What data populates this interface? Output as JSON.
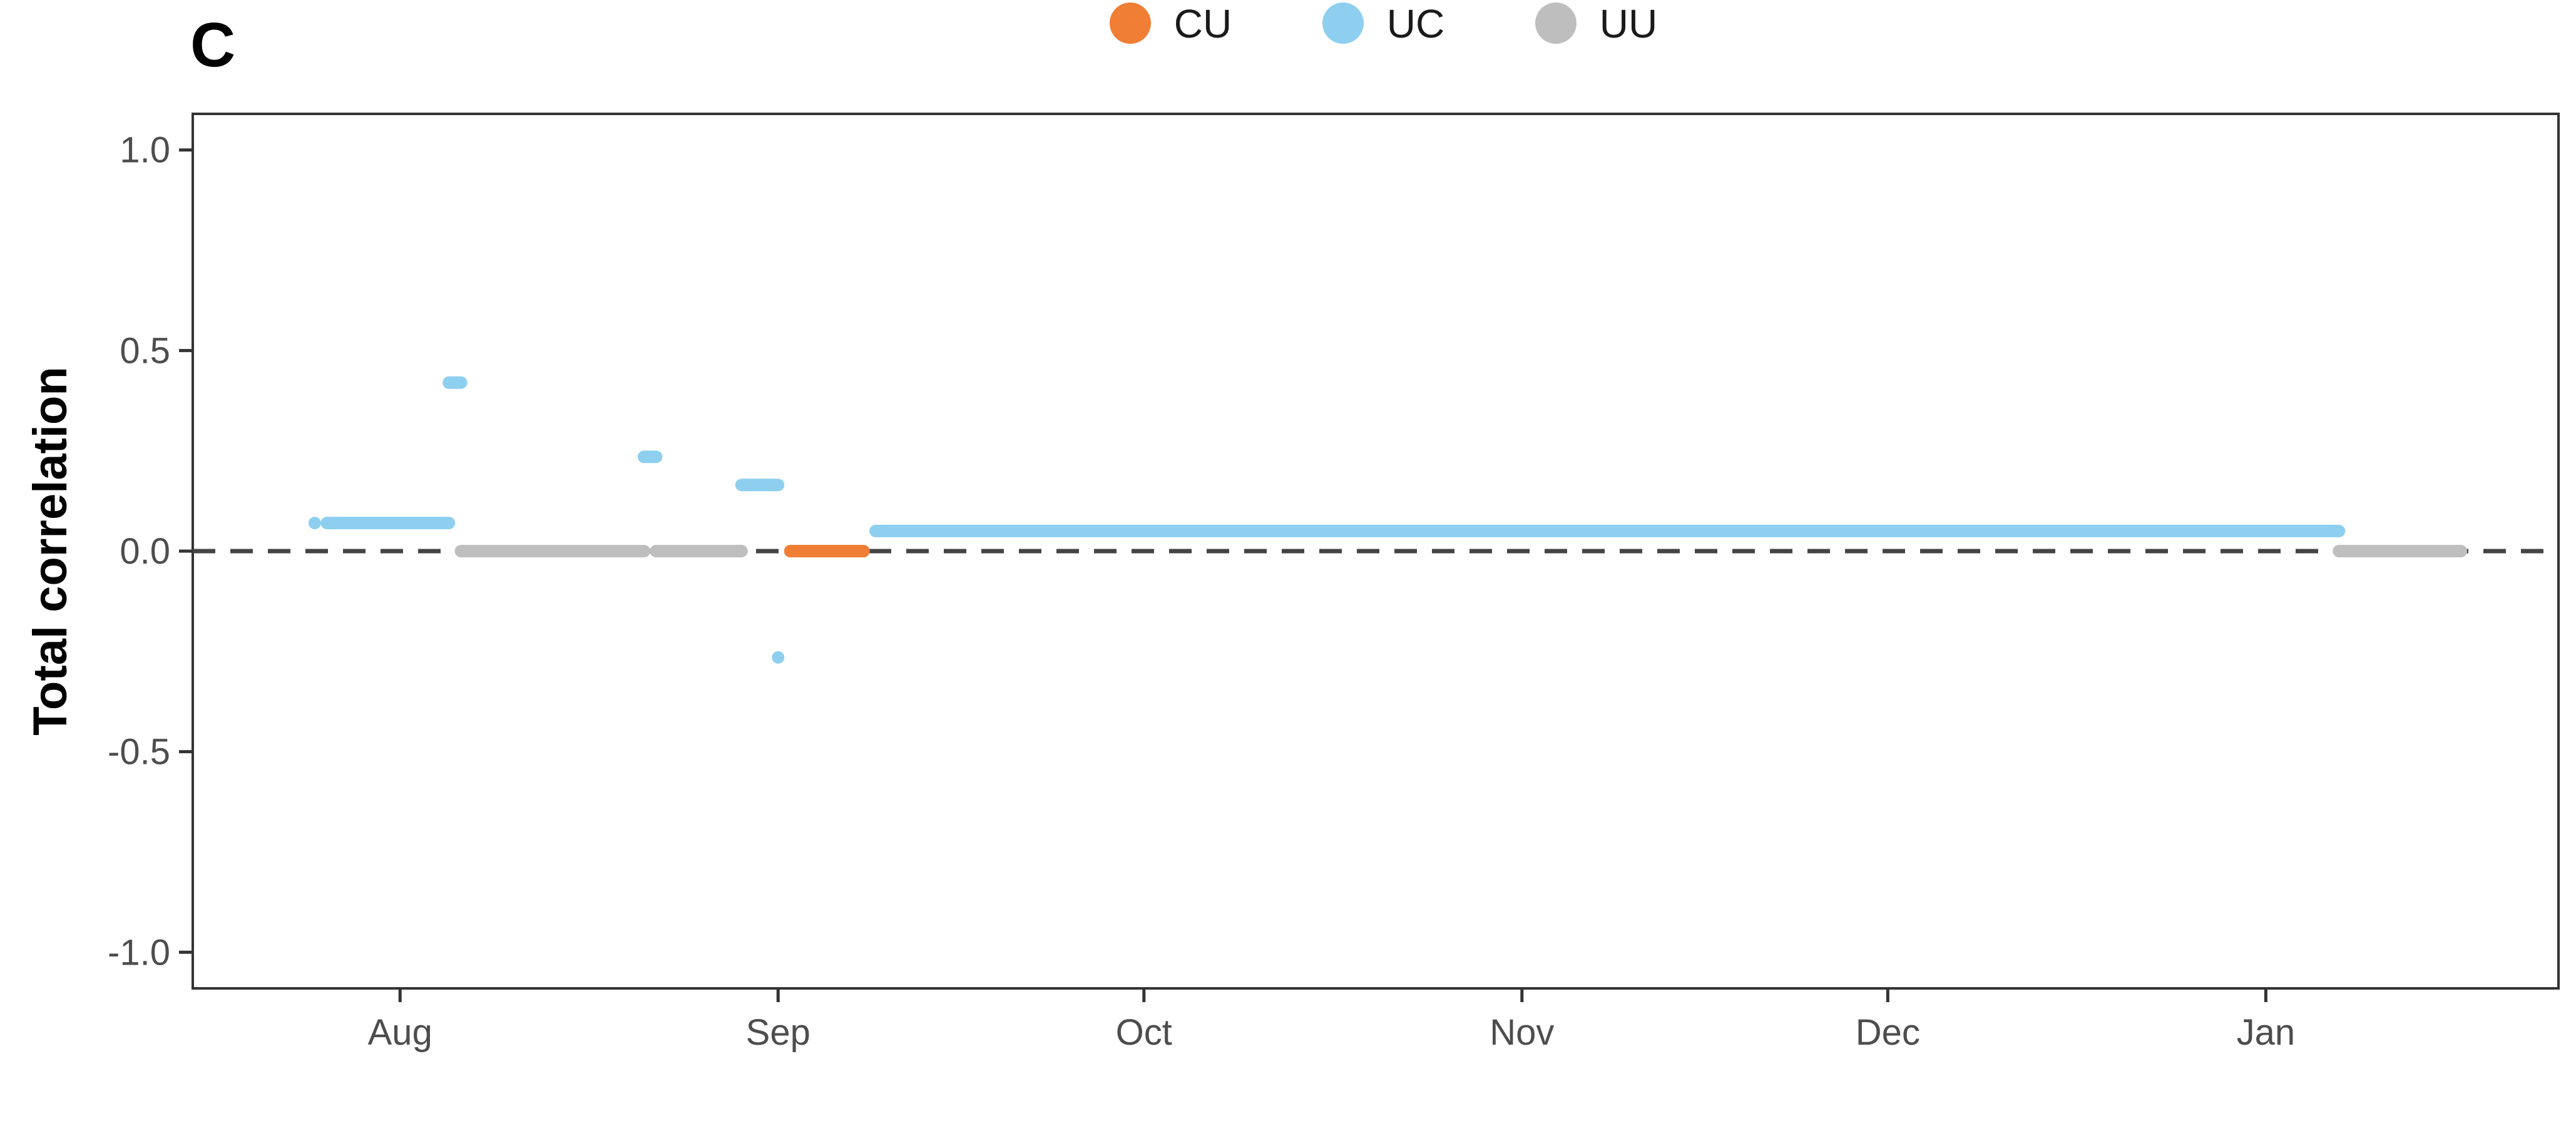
{
  "panel_label": "C",
  "chart_data": {
    "type": "scatter",
    "xlabel": "",
    "ylabel": "Total correlation",
    "x_type": "date",
    "x_ticks": [
      {
        "date": "2020-08-01",
        "label": "Aug"
      },
      {
        "date": "2020-09-01",
        "label": "Sep"
      },
      {
        "date": "2020-10-01",
        "label": "Oct"
      },
      {
        "date": "2020-11-01",
        "label": "Nov"
      },
      {
        "date": "2020-12-01",
        "label": "Dec"
      },
      {
        "date": "2021-01-01",
        "label": "Jan"
      }
    ],
    "xlim": [
      "2020-07-15",
      "2021-01-25"
    ],
    "ylim": [
      -1.09,
      1.09
    ],
    "y_ticks": [
      {
        "value": 1.0,
        "label": "1.0"
      },
      {
        "value": 0.5,
        "label": "0.5"
      },
      {
        "value": 0.0,
        "label": "0.0"
      },
      {
        "value": -0.5,
        "label": "-0.5"
      },
      {
        "value": -1.0,
        "label": "-1.0"
      }
    ],
    "reference_line": {
      "y": 0.0,
      "style": "dashed",
      "color": "#444444"
    },
    "grid": false,
    "legend_position": "top",
    "series": [
      {
        "name": "CU",
        "color": "#F07E35",
        "segments": [
          {
            "start": "2020-09-02",
            "end": "2020-09-08",
            "y": 0.0
          }
        ]
      },
      {
        "name": "UC",
        "color": "#8ECFF0",
        "segments": [
          {
            "start": "2020-07-25",
            "end": "2020-07-25",
            "y": 0.07
          },
          {
            "start": "2020-07-26",
            "end": "2020-08-05",
            "y": 0.07
          },
          {
            "start": "2020-08-05",
            "end": "2020-08-06",
            "y": 0.42
          },
          {
            "start": "2020-08-21",
            "end": "2020-08-22",
            "y": 0.235
          },
          {
            "start": "2020-08-29",
            "end": "2020-09-01",
            "y": 0.165
          },
          {
            "start": "2020-09-01",
            "end": "2020-09-01",
            "y": -0.265
          },
          {
            "start": "2020-09-09",
            "end": "2021-01-07",
            "y": 0.05
          }
        ]
      },
      {
        "name": "UU",
        "color": "#BEBEBE",
        "segments": [
          {
            "start": "2020-08-06",
            "end": "2020-08-21",
            "y": 0.0
          },
          {
            "start": "2020-08-22",
            "end": "2020-08-29",
            "y": 0.0
          },
          {
            "start": "2020-09-08",
            "end": "2020-09-08",
            "y": 0.0
          },
          {
            "start": "2021-01-07",
            "end": "2021-01-17",
            "y": 0.0
          }
        ]
      }
    ]
  }
}
